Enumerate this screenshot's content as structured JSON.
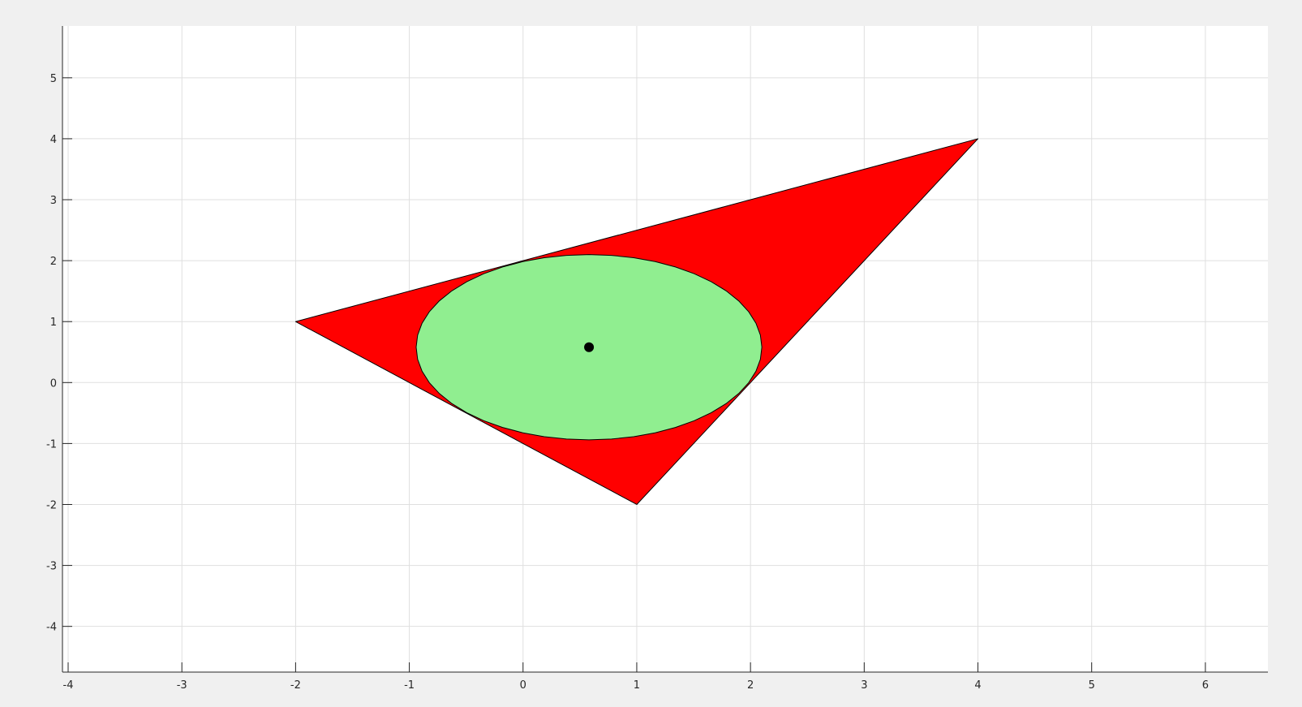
{
  "chart_data": {
    "type": "scatter",
    "title": "",
    "xlabel": "",
    "ylabel": "",
    "xlim": [
      -4.05,
      6.55
    ],
    "ylim": [
      -4.75,
      5.85
    ],
    "grid": true,
    "x_ticks": [
      -4,
      -3,
      -2,
      -1,
      0,
      1,
      2,
      3,
      4,
      5,
      6
    ],
    "y_ticks": [
      -4,
      -3,
      -2,
      -1,
      0,
      1,
      2,
      3,
      4,
      5
    ],
    "x_tick_labels": [
      "-4",
      "-3",
      "-2",
      "-1",
      "0",
      "1",
      "2",
      "3",
      "4",
      "5",
      "6"
    ],
    "y_tick_labels": [
      "-4",
      "-3",
      "-2",
      "-1",
      "0",
      "1",
      "2",
      "3",
      "4",
      "5"
    ],
    "triangle": {
      "vertices": [
        [
          -2,
          1
        ],
        [
          4,
          4
        ],
        [
          1,
          -2
        ]
      ],
      "fill": "#ff0000",
      "edge": "#000000"
    },
    "ellipse": {
      "center": [
        0.58,
        0.58
      ],
      "semi_axes": [
        1.52,
        1.52
      ],
      "fill": "#90ee90",
      "edge": "#000000"
    },
    "center_point": {
      "x": 0.58,
      "y": 0.58,
      "color": "#000000"
    }
  },
  "colors": {
    "figure_background": "#f0f0f0",
    "axes_background": "#ffffff",
    "grid": "#dfdfdf",
    "axis_line": "#262626"
  }
}
